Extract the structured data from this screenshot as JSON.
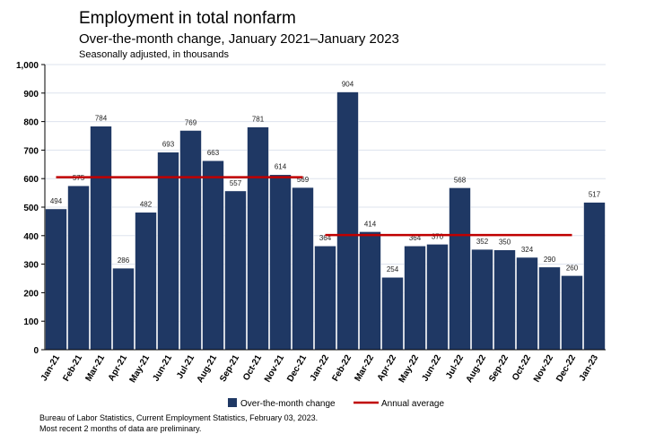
{
  "chart_data": {
    "type": "bar",
    "title": "Employment in total nonfarm",
    "subtitle": "Over-the-month change, January 2021–January 2023",
    "ylabel": "Seasonally adjusted, in thousands",
    "ylim": [
      0,
      1000
    ],
    "yticks": [
      "0",
      "100",
      "200",
      "300",
      "400",
      "500",
      "600",
      "700",
      "800",
      "900",
      "1,000"
    ],
    "grid": true,
    "legend_position": "bottom",
    "categories": [
      "Jan-21",
      "Feb-21",
      "Mar-21",
      "Apr-21",
      "May-21",
      "Jun-21",
      "Jul-21",
      "Aug-21",
      "Sep-21",
      "Oct-21",
      "Nov-21",
      "Dec-21",
      "Jan-22",
      "Feb-22",
      "Mar-22",
      "Apr-22",
      "May-22",
      "Jun-22",
      "Jul-22",
      "Aug-22",
      "Sep-22",
      "Oct-22",
      "Nov-22",
      "Dec-22",
      "Jan-23"
    ],
    "series": [
      {
        "name": "Over-the-month change",
        "type": "bar",
        "color": "#1f3864",
        "values": [
          494,
          575,
          784,
          286,
          482,
          693,
          769,
          663,
          557,
          781,
          614,
          569,
          364,
          904,
          414,
          254,
          364,
          370,
          568,
          352,
          350,
          324,
          290,
          260,
          517
        ]
      },
      {
        "name": "Annual average",
        "type": "line",
        "color": "#c00000",
        "segments": [
          {
            "from": "Jan-21",
            "to": "Dec-21",
            "value": 605
          },
          {
            "from": "Jan-22",
            "to": "Dec-22",
            "value": 402
          }
        ]
      }
    ]
  },
  "footnote": {
    "line1": "Bureau of Labor Statistics, Current Employment Statistics, February 03, 2023.",
    "line2": "Most recent 2 months of data are preliminary."
  }
}
